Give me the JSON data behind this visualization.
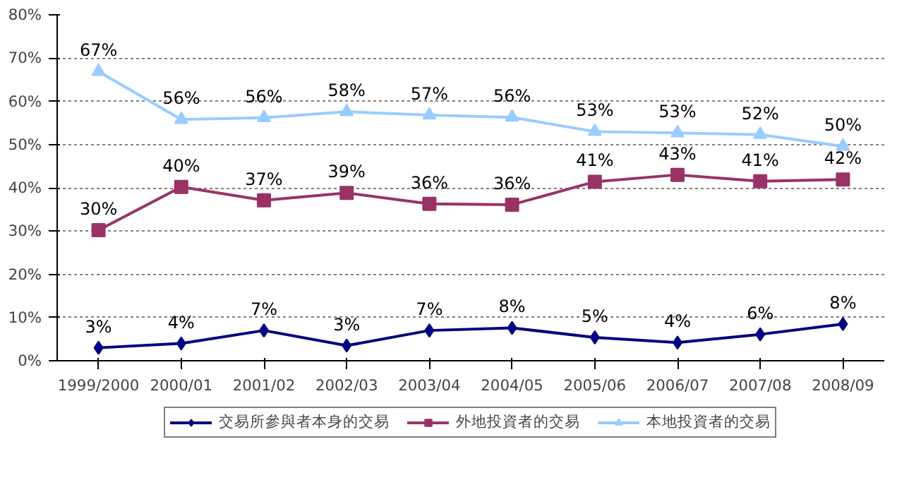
{
  "chart_data": {
    "type": "line",
    "categories": [
      "1999/2000",
      "2000/01",
      "2001/02",
      "2002/03",
      "2003/04",
      "2004/05",
      "2005/06",
      "2006/07",
      "2007/08",
      "2008/09"
    ],
    "series": [
      {
        "name": "交易所參與者本身的交易",
        "color": "#000080",
        "marker": "diamond",
        "values": [
          3,
          4,
          7,
          3.5,
          7,
          7.6,
          5.4,
          4.2,
          6.1,
          8.5
        ],
        "value_labels": [
          "3%",
          "4%",
          "7%",
          "3%",
          "7%",
          "8%",
          "5%",
          "4%",
          "6%",
          "8%"
        ]
      },
      {
        "name": "外地投資者的交易",
        "color": "#993366",
        "marker": "square",
        "values": [
          30.2,
          40.2,
          37.1,
          38.8,
          36.3,
          36.1,
          41.4,
          43,
          41.5,
          41.9
        ],
        "value_labels": [
          "30%",
          "40%",
          "37%",
          "39%",
          "36%",
          "36%",
          "41%",
          "43%",
          "41%",
          "42%"
        ]
      },
      {
        "name": "本地投資者的交易",
        "color": "#99ccff",
        "marker": "triangle",
        "values": [
          66.9,
          55.8,
          56.2,
          57.6,
          56.8,
          56.3,
          53,
          52.7,
          52.3,
          49.6
        ],
        "value_labels": [
          "67%",
          "56%",
          "56%",
          "58%",
          "57%",
          "56%",
          "53%",
          "53%",
          "52%",
          "50%"
        ]
      }
    ],
    "ylim": [
      0,
      80
    ],
    "yticks": [
      {
        "value": 0,
        "label": "0%"
      },
      {
        "value": 10,
        "label": "10%"
      },
      {
        "value": 20,
        "label": "20%"
      },
      {
        "value": 30,
        "label": "30%"
      },
      {
        "value": 40,
        "label": "40%"
      },
      {
        "value": 50,
        "label": "50%"
      },
      {
        "value": 60,
        "label": "60%"
      },
      {
        "value": 70,
        "label": "70%"
      },
      {
        "value": 80,
        "label": "80%"
      }
    ],
    "grid": "y",
    "legend": "bottom",
    "line_style": "solid"
  }
}
